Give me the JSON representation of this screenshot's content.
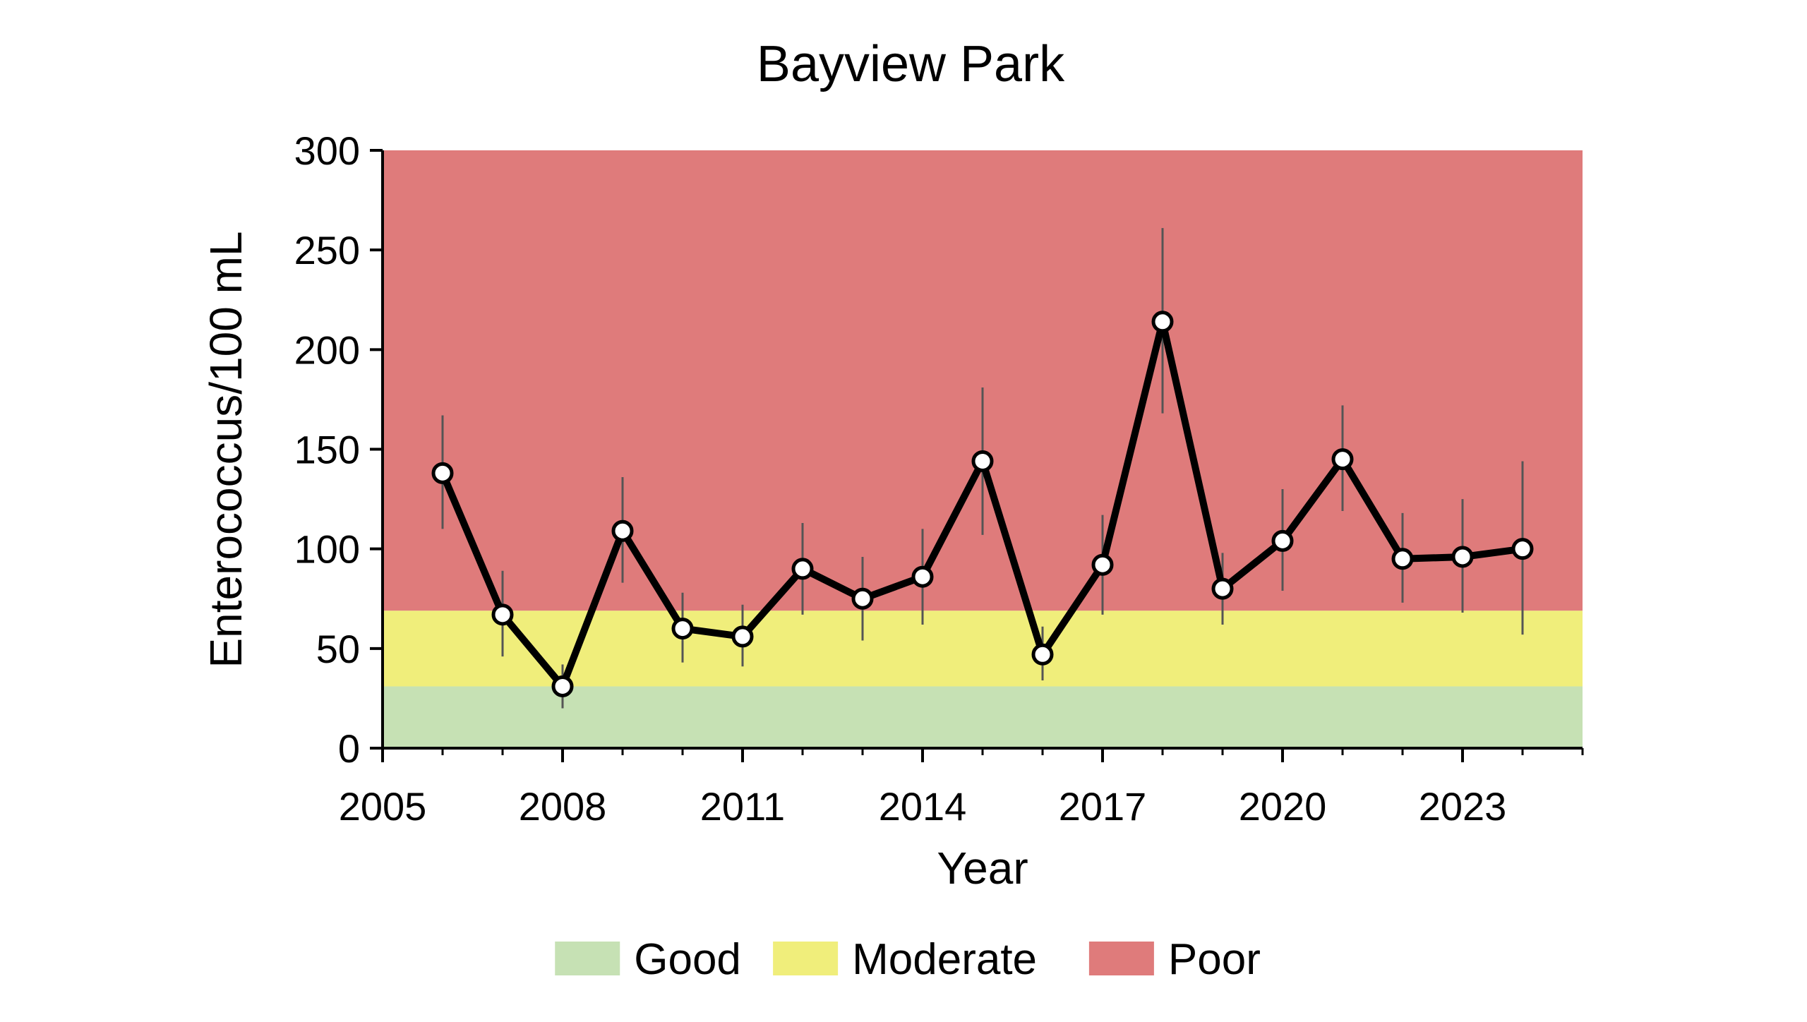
{
  "chart_data": {
    "type": "line",
    "title": "Bayview Park",
    "xlabel": "Year",
    "ylabel": "Enterococcus/100 mL",
    "xlim": [
      2005,
      2025
    ],
    "ylim": [
      0,
      300
    ],
    "xticks": [
      2005,
      2008,
      2011,
      2014,
      2017,
      2020,
      2023
    ],
    "yticks": [
      0,
      50,
      100,
      150,
      200,
      250,
      300
    ],
    "grid": false,
    "legend_position": "bottom",
    "bands": [
      {
        "name": "Good",
        "from": 0,
        "to": 31,
        "color": "#c6e1b4"
      },
      {
        "name": "Moderate",
        "from": 31,
        "to": 69,
        "color": "#f0ee7b"
      },
      {
        "name": "Poor",
        "from": 69,
        "to": 300,
        "color": "#df7b7b"
      }
    ],
    "series": [
      {
        "x": [
          2006,
          2007,
          2008,
          2009,
          2010,
          2011,
          2012,
          2013,
          2014,
          2015,
          2016,
          2017,
          2018,
          2019,
          2020,
          2021,
          2022,
          2023,
          2024
        ],
        "y": [
          138,
          67,
          31,
          109,
          60,
          56,
          90,
          75,
          86,
          144,
          47,
          92,
          214,
          80,
          104,
          145,
          95,
          96,
          100
        ],
        "err_low": [
          110,
          46,
          20,
          83,
          43,
          41,
          67,
          54,
          62,
          107,
          34,
          67,
          168,
          62,
          79,
          119,
          73,
          68,
          57
        ],
        "err_high": [
          167,
          89,
          42,
          136,
          78,
          72,
          113,
          96,
          110,
          181,
          61,
          117,
          261,
          98,
          130,
          172,
          118,
          125,
          144
        ],
        "color": "#000000"
      }
    ]
  }
}
